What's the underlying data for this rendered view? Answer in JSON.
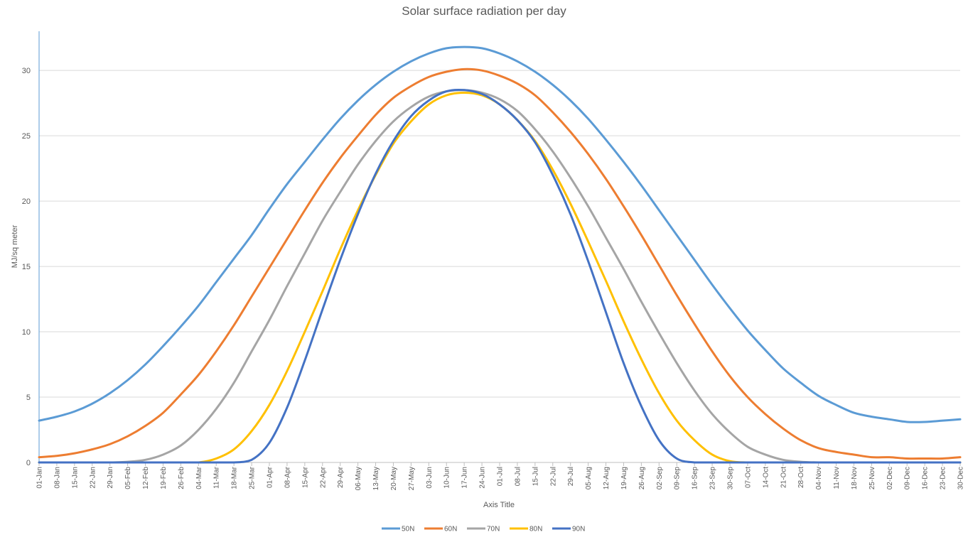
{
  "chart_data": {
    "type": "line",
    "title": "Solar surface radiation per day",
    "xlabel": "Axis Title",
    "ylabel": "MJ/sq meter",
    "ylim": [
      0,
      33
    ],
    "yticks": [
      0,
      5,
      10,
      15,
      20,
      25,
      30
    ],
    "grid": true,
    "legend_position": "bottom",
    "x_tick_labels": [
      "01-Jan",
      "08-Jan",
      "15-Jan",
      "22-Jan",
      "29-Jan",
      "05-Feb",
      "12-Feb",
      "19-Feb",
      "26-Feb",
      "04-Mar",
      "11-Mar",
      "18-Mar",
      "25-Mar",
      "01-Apr",
      "08-Apr",
      "15-Apr",
      "22-Apr",
      "29-Apr",
      "06-May",
      "13-May",
      "20-May",
      "27-May",
      "03-Jun",
      "10-Jun",
      "17-Jun",
      "24-Jun",
      "01-Jul",
      "08-Jul",
      "15-Jul",
      "22-Jul",
      "29-Jul",
      "05-Aug",
      "12-Aug",
      "19-Aug",
      "26-Aug",
      "02-Sep",
      "09-Sep",
      "16-Sep",
      "23-Sep",
      "30-Sep",
      "07-Oct",
      "14-Oct",
      "21-Oct",
      "28-Oct",
      "04-Nov",
      "11-Nov",
      "18-Nov",
      "25-Nov",
      "02-Dec",
      "09-Dec",
      "16-Dec",
      "23-Dec",
      "30-Dec"
    ],
    "series": [
      {
        "name": "50N",
        "color": "#5b9bd5",
        "values": [
          3.2,
          3.5,
          3.9,
          4.5,
          5.3,
          6.3,
          7.5,
          8.9,
          10.4,
          12.0,
          13.8,
          15.6,
          17.4,
          19.4,
          21.3,
          23.0,
          24.7,
          26.3,
          27.7,
          28.9,
          29.9,
          30.7,
          31.3,
          31.7,
          31.8,
          31.7,
          31.3,
          30.7,
          29.9,
          28.9,
          27.7,
          26.3,
          24.7,
          23.0,
          21.2,
          19.3,
          17.4,
          15.5,
          13.6,
          11.8,
          10.1,
          8.6,
          7.2,
          6.1,
          5.1,
          4.4,
          3.8,
          3.5,
          3.3,
          3.1,
          3.1,
          3.2,
          3.3
        ]
      },
      {
        "name": "60N",
        "color": "#ed7d31",
        "values": [
          0.4,
          0.5,
          0.7,
          1.0,
          1.4,
          2.0,
          2.8,
          3.8,
          5.2,
          6.7,
          8.5,
          10.5,
          12.7,
          14.9,
          17.1,
          19.3,
          21.4,
          23.3,
          25.0,
          26.6,
          27.9,
          28.8,
          29.5,
          29.9,
          30.1,
          30.0,
          29.6,
          29.0,
          28.1,
          26.8,
          25.3,
          23.6,
          21.7,
          19.6,
          17.4,
          15.1,
          12.8,
          10.6,
          8.5,
          6.6,
          5.0,
          3.7,
          2.6,
          1.7,
          1.1,
          0.8,
          0.6,
          0.4,
          0.4,
          0.3,
          0.3,
          0.3,
          0.4
        ]
      },
      {
        "name": "70N",
        "color": "#a5a5a5",
        "values": [
          0,
          0,
          0,
          0,
          0,
          0.05,
          0.2,
          0.6,
          1.3,
          2.5,
          4.1,
          6.1,
          8.5,
          10.9,
          13.5,
          16.0,
          18.5,
          20.7,
          22.8,
          24.6,
          26.1,
          27.2,
          28.0,
          28.4,
          28.5,
          28.3,
          27.8,
          26.9,
          25.5,
          23.8,
          21.8,
          19.6,
          17.2,
          14.8,
          12.3,
          9.9,
          7.6,
          5.5,
          3.7,
          2.3,
          1.2,
          0.6,
          0.2,
          0.05,
          0,
          0,
          0,
          0,
          0,
          0,
          0,
          0,
          0
        ]
      },
      {
        "name": "80N",
        "color": "#ffc000",
        "values": [
          0,
          0,
          0,
          0,
          0,
          0,
          0,
          0,
          0,
          0,
          0.3,
          1.0,
          2.4,
          4.4,
          7.0,
          10.0,
          13.1,
          16.3,
          19.3,
          22.0,
          24.4,
          26.1,
          27.4,
          28.1,
          28.3,
          28.1,
          27.4,
          26.2,
          24.6,
          22.4,
          19.8,
          16.9,
          13.9,
          10.8,
          7.9,
          5.3,
          3.2,
          1.7,
          0.6,
          0.1,
          0,
          0,
          0,
          0,
          0,
          0,
          0,
          0,
          0,
          0,
          0,
          0,
          0
        ]
      },
      {
        "name": "90N",
        "color": "#4472c4",
        "values": [
          0,
          0,
          0,
          0,
          0,
          0,
          0,
          0,
          0,
          0,
          0,
          0,
          0.2,
          1.5,
          4.2,
          7.8,
          11.7,
          15.5,
          19.0,
          22.1,
          24.6,
          26.5,
          27.7,
          28.4,
          28.5,
          28.2,
          27.4,
          26.2,
          24.5,
          22.0,
          19.0,
          15.4,
          11.5,
          7.6,
          4.3,
          1.7,
          0.3,
          0,
          0,
          0,
          0,
          0,
          0,
          0,
          0,
          0,
          0,
          0,
          0,
          0,
          0,
          0,
          0
        ]
      }
    ]
  }
}
